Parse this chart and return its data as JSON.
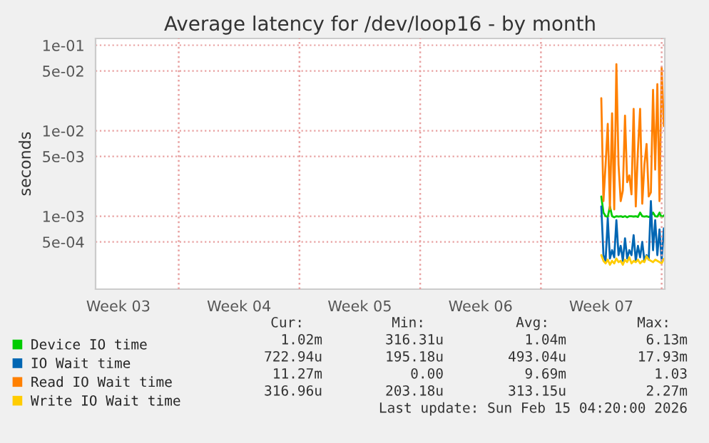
{
  "chart_data": {
    "type": "line",
    "title": "Average latency for /dev/loop16 - by month",
    "ylabel": "seconds",
    "x": [
      "2026-02-11T12:00",
      "2026-02-11T15:00",
      "2026-02-11T18:00",
      "2026-02-11T21:00",
      "2026-02-12T00:00",
      "2026-02-12T03:00",
      "2026-02-12T06:00",
      "2026-02-12T09:00",
      "2026-02-12T12:00",
      "2026-02-12T15:00",
      "2026-02-12T18:00",
      "2026-02-12T21:00",
      "2026-02-13T00:00",
      "2026-02-13T03:00",
      "2026-02-13T06:00",
      "2026-02-13T09:00",
      "2026-02-13T12:00",
      "2026-02-13T15:00",
      "2026-02-13T18:00",
      "2026-02-13T21:00",
      "2026-02-14T00:00",
      "2026-02-14T03:00",
      "2026-02-14T06:00",
      "2026-02-14T09:00",
      "2026-02-14T12:00",
      "2026-02-14T15:00",
      "2026-02-14T18:00",
      "2026-02-14T21:00",
      "2026-02-15T00:00",
      "2026-02-15T03:00"
    ],
    "series": [
      {
        "name": "Device IO time",
        "color": "#00cc00",
        "values": [
          0.0017,
          0.0011,
          0.001,
          0.00098,
          0.0013,
          0.001,
          0.00097,
          0.001,
          0.00099,
          0.001,
          0.00098,
          0.001,
          0.00097,
          0.001,
          0.001,
          0.00099,
          0.001,
          0.00098,
          0.0011,
          0.001,
          0.00099,
          0.001,
          0.00098,
          0.001,
          0.0011,
          0.001,
          0.00099,
          0.0011,
          0.00097,
          0.00102
        ]
      },
      {
        "name": "IO Wait time",
        "color": "#0066b3",
        "values": [
          0.0013,
          0.00035,
          0.0003,
          0.00095,
          0.00032,
          0.0004,
          0.00033,
          0.0009,
          0.00035,
          0.00045,
          0.0003,
          0.00055,
          0.00032,
          0.0004,
          0.00035,
          0.0006,
          0.0003,
          0.00045,
          0.00033,
          0.0005,
          0.0003,
          0.00035,
          0.00031,
          0.0015,
          0.0004,
          0.0009,
          0.00035,
          0.0007,
          0.0003,
          0.00072
        ]
      },
      {
        "name": "Read IO Wait time",
        "color": "#ff8000",
        "values": [
          0.024,
          0.0015,
          0.004,
          0.012,
          0.0012,
          0.016,
          0.0012,
          0.06,
          0.004,
          0.0015,
          0.002,
          0.015,
          0.0025,
          0.003,
          0.0018,
          0.018,
          0.0013,
          0.006,
          0.018,
          0.0014,
          0.004,
          0.007,
          0.0017,
          0.0019,
          0.03,
          0.0035,
          0.035,
          0.0015,
          0.055,
          0.0113
        ]
      },
      {
        "name": "Write IO Wait time",
        "color": "#ffcc00",
        "values": [
          0.00035,
          0.0003,
          0.00028,
          0.00031,
          0.00027,
          0.0003,
          0.00028,
          0.00032,
          0.00029,
          0.0003,
          0.00027,
          0.00031,
          0.00029,
          0.00033,
          0.00028,
          0.0003,
          0.00029,
          0.00031,
          0.00028,
          0.0003,
          0.00029,
          0.00034,
          0.00031,
          0.0003,
          0.00029,
          0.00031,
          0.0003,
          0.00029,
          0.00028,
          0.000317
        ]
      }
    ],
    "log": "y",
    "ylim": [
      0.00014,
      0.12
    ],
    "yticks": [
      {
        "value": 0.1,
        "label": "1e-01"
      },
      {
        "value": 0.05,
        "label": "5e-02"
      },
      {
        "value": 0.01,
        "label": "1e-02"
      },
      {
        "value": 0.005,
        "label": "5e-03"
      },
      {
        "value": 0.001,
        "label": "1e-03"
      },
      {
        "value": 0.0005,
        "label": "5e-04"
      }
    ],
    "xlim": [
      "2026-01-13T04:20",
      "2026-02-15T04:20"
    ],
    "xticks": [
      {
        "value": "2026-01-14T12:00",
        "label": "Week 03"
      },
      {
        "value": "2026-01-21T12:00",
        "label": "Week 04"
      },
      {
        "value": "2026-01-28T12:00",
        "label": "Week 05"
      },
      {
        "value": "2026-02-04T12:00",
        "label": "Week 06"
      },
      {
        "value": "2026-02-11T12:00",
        "label": "Week 07"
      }
    ],
    "ref_lines": [
      {
        "axis": "x",
        "value": "2026-01-18",
        "color": "#e8a0a0",
        "line_style": "dotted"
      },
      {
        "axis": "x",
        "value": "2026-01-25",
        "color": "#e8a0a0",
        "line_style": "dotted"
      },
      {
        "axis": "x",
        "value": "2026-02-01",
        "color": "#e8a0a0",
        "line_style": "dotted"
      },
      {
        "axis": "x",
        "value": "2026-02-08",
        "color": "#e8a0a0",
        "line_style": "dotted"
      },
      {
        "axis": "x",
        "value": "2026-02-15",
        "color": "#e8a0a0",
        "line_style": "dotted"
      }
    ],
    "grid": "y",
    "legend": "bottom",
    "line_style": "solid",
    "marker": "none",
    "annotations": [
      "Cur:",
      "Min:",
      "Avg:",
      "Max:",
      "1.02m",
      "316.31u",
      "1.04m",
      "6.13m",
      "722.94u",
      "195.18u",
      "493.04u",
      "17.93m",
      "11.27m",
      "0.00",
      "9.69m",
      "1.03",
      "316.96u",
      "203.18u",
      "313.15u",
      "2.27m",
      "Last update: Sun Feb 15 04:20:00 2026"
    ]
  }
}
